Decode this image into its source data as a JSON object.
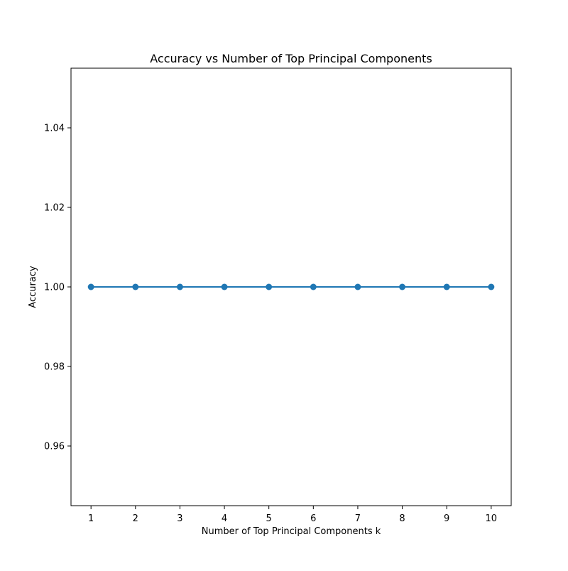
{
  "chart_data": {
    "type": "line",
    "title": "Accuracy vs Number of Top Principal Components",
    "xlabel": "Number of Top Principal Components k",
    "ylabel": "Accuracy",
    "x": [
      1,
      2,
      3,
      4,
      5,
      6,
      7,
      8,
      9,
      10
    ],
    "series": [
      {
        "values": [
          1.0,
          1.0,
          1.0,
          1.0,
          1.0,
          1.0,
          1.0,
          1.0,
          1.0,
          1.0
        ],
        "color": "#1f77b4",
        "marker": "circle"
      }
    ],
    "xlim": [
      0.55,
      10.45
    ],
    "ylim": [
      0.945,
      1.055
    ],
    "xticks": [
      "1",
      "2",
      "3",
      "4",
      "5",
      "6",
      "7",
      "8",
      "9",
      "10"
    ],
    "yticks": [
      "0.96",
      "0.98",
      "1.00",
      "1.02",
      "1.04"
    ],
    "grid": false,
    "legend": "none"
  }
}
